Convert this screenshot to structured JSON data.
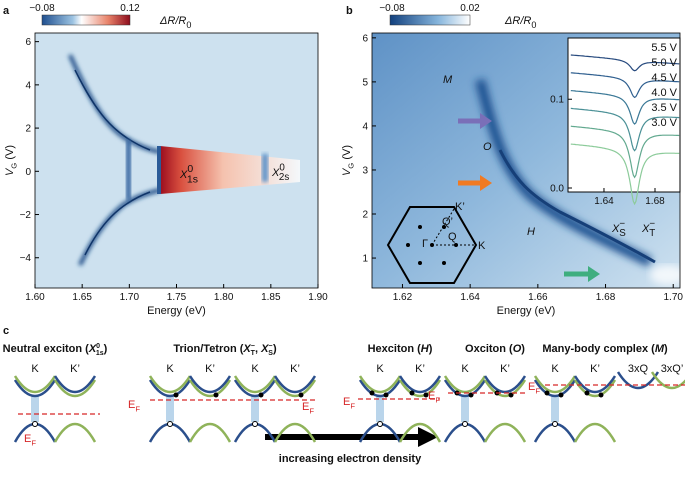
{
  "panel_labels": [
    "a",
    "b",
    "c"
  ],
  "panel_a": {
    "colorbar_ticks": [
      "−0.08",
      "0.12"
    ],
    "colorbar_label": [
      {
        "base": "ΔR/R",
        "sub": "0"
      }
    ],
    "xlabel": "Energy (eV)",
    "ylabel": [
      {
        "base": "V",
        "sub": "G"
      },
      " (V)"
    ],
    "xlim": [
      1.6,
      1.9
    ],
    "xticks": [
      {
        "value": 1.6,
        "label": "1.60"
      },
      {
        "value": 1.65,
        "label": "1.65"
      },
      {
        "value": 1.7,
        "label": "1.70"
      },
      {
        "value": 1.75,
        "label": "1.75"
      },
      {
        "value": 1.8,
        "label": "1.80"
      },
      {
        "value": 1.85,
        "label": "1.85"
      },
      {
        "value": 1.9,
        "label": "1.90"
      }
    ],
    "ylim": [
      -5.4,
      6.4
    ],
    "yticks": [
      {
        "value": -4,
        "label": "−4"
      },
      {
        "value": -2,
        "label": "−2"
      },
      0,
      2,
      4,
      6
    ],
    "annotations": [
      [
        {
          "base": "X",
          "sub": "1s",
          "sup": "0"
        }
      ],
      [
        {
          "base": "X",
          "sub": "2s",
          "sup": "0"
        }
      ]
    ]
  },
  "panel_b": {
    "colorbar_ticks": [
      "−0.08",
      "0.02"
    ],
    "colorbar_label": [
      {
        "base": "ΔR/R",
        "sub": "0"
      }
    ],
    "xlabel": "Energy (eV)",
    "ylabel": [
      {
        "base": "V",
        "sub": "G"
      },
      " (V)"
    ],
    "xlim": [
      1.611,
      1.702
    ],
    "xticks": [
      {
        "value": 1.62,
        "label": "1.62"
      },
      {
        "value": 1.64,
        "label": "1.64"
      },
      {
        "value": 1.66,
        "label": "1.66"
      },
      {
        "value": 1.68,
        "label": "1.68"
      },
      {
        "value": 1.7,
        "label": "1.70"
      }
    ],
    "ylim": [
      0.32,
      6.11
    ],
    "yticks": [
      1,
      2,
      3,
      4,
      5,
      6
    ],
    "annotations": [
      [
        {
          "base": "M"
        }
      ],
      [
        {
          "base": "O"
        }
      ],
      [
        {
          "base": "H"
        }
      ],
      [
        {
          "base": "X",
          "sub": "S",
          "sup": "−"
        }
      ],
      [
        {
          "base": "X",
          "sub": "T",
          "sup": "−"
        }
      ]
    ],
    "bz_labels": [
      "K’",
      "Q’",
      "Γ",
      "Q",
      "K"
    ],
    "inset": {
      "xlim": [
        1.6118,
        1.6996
      ],
      "xticks": [
        1.64,
        1.68
      ],
      "ylim": [
        -0.0045,
        0.169
      ],
      "yticks": [
        {
          "value": 0,
          "label": "0.0"
        },
        0.1
      ],
      "curve_labels": [
        "5.5 V",
        "5.0 V",
        "4.5 V",
        "4.0 V",
        "3.5 V",
        "3.0 V"
      ]
    }
  },
  "panel_c": {
    "titles": [
      [
        "Neutral exciton (",
        {
          "base": "X",
          "sub": "1s",
          "sup": "0"
        },
        ")"
      ],
      [
        "Trion/Tetron (",
        {
          "base": "X",
          "sub": "T",
          "sup": "−"
        },
        ", ",
        {
          "base": "X",
          "sub": "S",
          "sup": "−"
        },
        ")"
      ],
      [
        "Hexciton (",
        {
          "base": "H"
        },
        ")"
      ],
      [
        "Oxciton (",
        {
          "base": "O"
        },
        ")"
      ],
      [
        "Many-body complex (",
        {
          "base": "M"
        },
        ")"
      ]
    ],
    "diagrams": [
      {
        "valleys": [
          "K",
          "K’"
        ],
        "ef": [
          {
            "base": "E",
            "sub": "F"
          }
        ]
      },
      {
        "valleys": [
          "K",
          "K’"
        ],
        "ef": [
          {
            "base": "E",
            "sub": "F"
          }
        ]
      },
      {
        "valleys": [
          "K",
          "K’"
        ],
        "ef": [
          {
            "base": "E",
            "sub": "F"
          }
        ]
      },
      {
        "valleys": [
          "K",
          "K’"
        ],
        "ef": [
          {
            "base": "E",
            "sub": "F"
          }
        ]
      },
      {
        "valleys": [
          "K",
          "K’"
        ],
        "ef": [
          {
            "base": "E",
            "sub": "F"
          }
        ]
      },
      {
        "valleys": [
          "K",
          "K’",
          "3xQ",
          "3xQ’"
        ],
        "ef": [
          {
            "base": "E",
            "sub": "F"
          }
        ]
      }
    ],
    "arrow_label": "increasing electron density"
  }
}
